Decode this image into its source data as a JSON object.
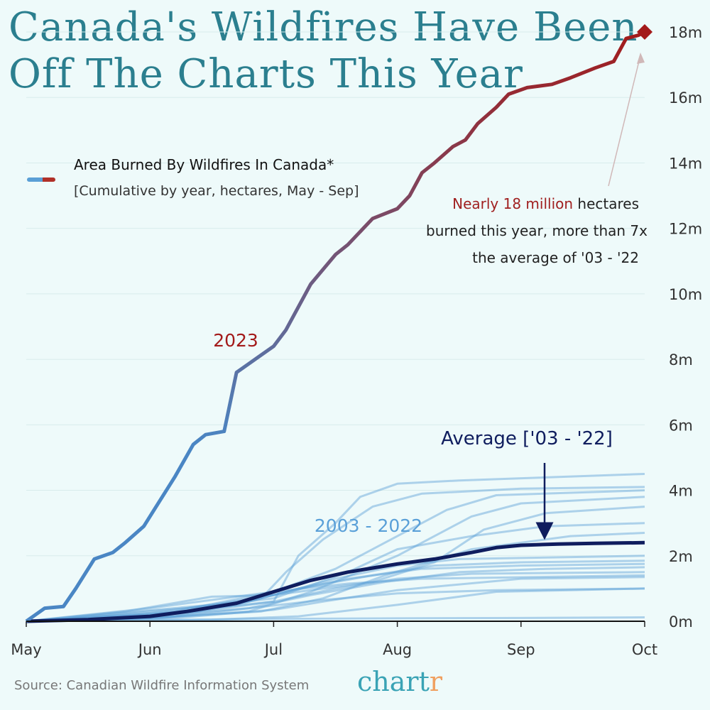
{
  "title_line1": "Canada's Wildfires Have Been",
  "title_line2": "Off The Charts This Year",
  "legend": {
    "title": "Area Burned By Wildfires In Canada*",
    "subtitle": "[Cumulative by year, hectares, May - Sep]"
  },
  "annotation": {
    "highlight": "Nearly 18 million",
    "line1_rest": " hectares",
    "line2": "burned this year, more than 7x",
    "line3": "the average of '03 - '22"
  },
  "source": "Source: Canadian Wildfire Information System",
  "logo": {
    "main": "chart",
    "accent": "r"
  },
  "colors": {
    "background": "#eefafa",
    "title": "#2b7f8f",
    "y2023_start": "#4a86c4",
    "y2023_end": "#a31a1a",
    "history": "#5a9fd6",
    "average": "#0f1d5e",
    "range_label": "#5aa0d8"
  },
  "chart_data": {
    "type": "line",
    "xlabel": "",
    "ylabel": "",
    "x_ticks": [
      "May",
      "Jun",
      "Jul",
      "Aug",
      "Sep",
      "Oct"
    ],
    "y_ticks": [
      "0m",
      "2m",
      "4m",
      "6m",
      "8m",
      "10m",
      "12m",
      "14m",
      "16m",
      "18m"
    ],
    "ylim": [
      0,
      18
    ],
    "xlim": [
      0,
      5
    ],
    "grid": "horizontal",
    "labels": {
      "y2023": "2023",
      "history": "2003 - 2022",
      "average": "Average ['03 - '22]"
    },
    "series_2023": {
      "name": "2023",
      "x": [
        0,
        0.15,
        0.3,
        0.4,
        0.55,
        0.7,
        0.8,
        0.95,
        1.05,
        1.2,
        1.35,
        1.45,
        1.6,
        1.7,
        1.85,
        2.0,
        2.1,
        2.3,
        2.5,
        2.6,
        2.8,
        3.0,
        3.1,
        3.2,
        3.3,
        3.45,
        3.55,
        3.65,
        3.8,
        3.9,
        4.05,
        4.25,
        4.4,
        4.6,
        4.75,
        4.85,
        4.95,
        5.0
      ],
      "y": [
        0,
        0.4,
        0.45,
        1.0,
        1.9,
        2.1,
        2.4,
        2.9,
        3.5,
        4.4,
        5.4,
        5.7,
        5.8,
        7.6,
        8.0,
        8.4,
        8.9,
        10.3,
        11.2,
        11.5,
        12.3,
        12.6,
        13.0,
        13.7,
        14.0,
        14.5,
        14.7,
        15.2,
        15.7,
        16.1,
        16.3,
        16.4,
        16.6,
        16.9,
        17.1,
        17.8,
        17.9,
        18.0
      ]
    },
    "marker_2023_end": {
      "x": 5.0,
      "y": 18.0
    },
    "average": {
      "name": "Average ['03 - '22]",
      "x": [
        0,
        0.5,
        1.0,
        1.3,
        1.7,
        2.0,
        2.3,
        2.6,
        3.0,
        3.3,
        3.6,
        3.8,
        4.0,
        4.3,
        4.6,
        5.0
      ],
      "y": [
        0,
        0.05,
        0.15,
        0.3,
        0.55,
        0.9,
        1.25,
        1.5,
        1.75,
        1.9,
        2.1,
        2.25,
        2.32,
        2.36,
        2.38,
        2.4
      ]
    },
    "history_years": [
      {
        "x": [
          0,
          1.0,
          2.0,
          2.2,
          2.5,
          2.7,
          3.0,
          3.5,
          5.0
        ],
        "y": [
          0,
          0.2,
          0.6,
          2.0,
          3.0,
          3.8,
          4.2,
          4.3,
          4.5
        ]
      },
      {
        "x": [
          0,
          1.0,
          1.9,
          2.1,
          2.4,
          2.8,
          3.2,
          4.0,
          5.0
        ],
        "y": [
          0,
          0.25,
          0.7,
          1.5,
          2.5,
          3.5,
          3.9,
          4.05,
          4.1
        ]
      },
      {
        "x": [
          0,
          1.2,
          2.0,
          2.5,
          2.9,
          3.4,
          3.8,
          5.0
        ],
        "y": [
          0,
          0.3,
          0.9,
          1.6,
          2.4,
          3.4,
          3.85,
          4.0
        ]
      },
      {
        "x": [
          0,
          1.0,
          1.8,
          2.3,
          3.0,
          3.6,
          4.0,
          5.0
        ],
        "y": [
          0,
          0.1,
          0.3,
          0.9,
          2.0,
          3.2,
          3.6,
          3.8
        ]
      },
      {
        "x": [
          0,
          1.5,
          2.0,
          2.8,
          3.3,
          3.7,
          4.2,
          5.0
        ],
        "y": [
          0,
          0.5,
          0.8,
          1.2,
          1.8,
          2.8,
          3.3,
          3.5
        ]
      },
      {
        "x": [
          0,
          1.3,
          2.0,
          2.6,
          3.0,
          3.6,
          4.2,
          5.0
        ],
        "y": [
          0,
          0.4,
          0.7,
          1.5,
          2.2,
          2.6,
          2.9,
          3.0
        ]
      },
      {
        "x": [
          0,
          1.0,
          1.9,
          2.4,
          2.9,
          3.6,
          4.4,
          5.0
        ],
        "y": [
          0,
          0.1,
          0.3,
          0.7,
          1.4,
          2.2,
          2.6,
          2.7
        ]
      },
      {
        "x": [
          0,
          0.8,
          1.5,
          2.0,
          2.5,
          3.0,
          3.5,
          5.0
        ],
        "y": [
          0,
          0.3,
          0.75,
          0.8,
          1.3,
          1.7,
          1.9,
          2.0
        ]
      },
      {
        "x": [
          0,
          1.2,
          1.8,
          2.2,
          2.8,
          3.3,
          4.0,
          5.0
        ],
        "y": [
          0,
          0.15,
          0.6,
          1.0,
          1.4,
          1.7,
          1.8,
          1.85
        ]
      },
      {
        "x": [
          0,
          1.0,
          1.7,
          2.1,
          2.6,
          3.2,
          4.0,
          5.0
        ],
        "y": [
          0,
          0.2,
          0.5,
          0.9,
          1.3,
          1.6,
          1.7,
          1.75
        ]
      },
      {
        "x": [
          0,
          1.1,
          1.8,
          2.3,
          2.9,
          3.5,
          4.2,
          5.0
        ],
        "y": [
          0,
          0.1,
          0.4,
          0.8,
          1.2,
          1.5,
          1.6,
          1.65
        ]
      },
      {
        "x": [
          0,
          1.4,
          2.0,
          2.5,
          3.0,
          3.6,
          5.0
        ],
        "y": [
          0,
          0.3,
          0.6,
          1.0,
          1.3,
          1.45,
          1.5
        ]
      },
      {
        "x": [
          0,
          1.0,
          1.6,
          2.0,
          2.6,
          3.2,
          5.0
        ],
        "y": [
          0,
          0.4,
          0.7,
          0.9,
          1.15,
          1.3,
          1.4
        ]
      },
      {
        "x": [
          0,
          1.2,
          2.0,
          2.4,
          3.0,
          4.0,
          5.0
        ],
        "y": [
          0,
          0.1,
          0.35,
          0.6,
          0.95,
          1.3,
          1.35
        ]
      },
      {
        "x": [
          0,
          1.0,
          1.8,
          2.4,
          3.0,
          3.8,
          5.0
        ],
        "y": [
          0,
          0.15,
          0.4,
          0.65,
          0.85,
          0.95,
          1.0
        ]
      },
      {
        "x": [
          0,
          1.5,
          2.2,
          3.0,
          3.8,
          5.0
        ],
        "y": [
          0,
          0.05,
          0.15,
          0.5,
          0.9,
          1.0
        ]
      },
      {
        "x": [
          0,
          1.0,
          2.0,
          3.0,
          4.0,
          5.0
        ],
        "y": [
          0,
          0.03,
          0.07,
          0.09,
          0.1,
          0.12
        ]
      }
    ]
  }
}
